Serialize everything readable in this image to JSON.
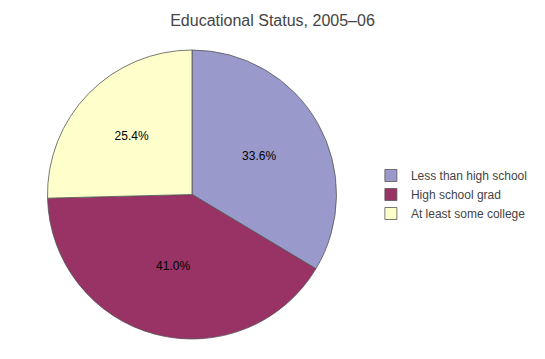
{
  "chart_data": {
    "type": "pie",
    "title": "Educational Status, 2005–06",
    "categories": [
      "Less than high school",
      "High school grad",
      "At least some college"
    ],
    "values": [
      33.6,
      41.0,
      25.4
    ],
    "value_labels": [
      "33.6%",
      "41.0%",
      "25.4%"
    ],
    "data_labels": true,
    "colors": [
      "#9999cc",
      "#993366",
      "#ffffcc"
    ],
    "legend": "right"
  }
}
